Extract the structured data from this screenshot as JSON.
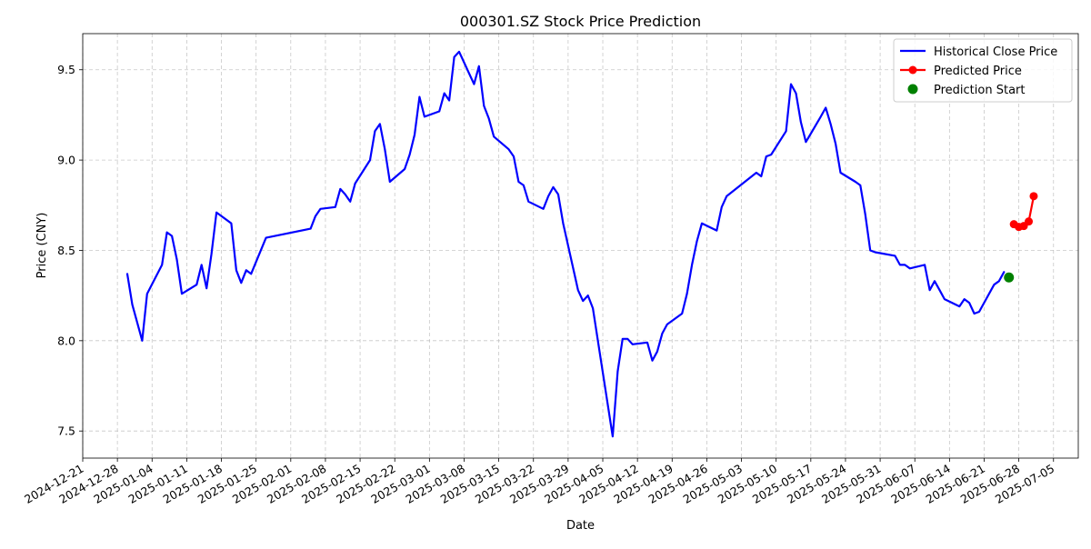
{
  "chart_data": {
    "type": "line",
    "title": "000301.SZ Stock Price Prediction",
    "xlabel": "Date",
    "ylabel": "Price (CNY)",
    "xlim": [
      "2024-12-21",
      "2025-07-10"
    ],
    "ylim": [
      7.35,
      9.7
    ],
    "y_ticks": [
      7.5,
      8.0,
      8.5,
      9.0,
      9.5
    ],
    "x_ticks": [
      "2024-12-21",
      "2024-12-28",
      "2025-01-04",
      "2025-01-11",
      "2025-01-18",
      "2025-01-25",
      "2025-02-01",
      "2025-02-08",
      "2025-02-15",
      "2025-02-22",
      "2025-03-01",
      "2025-03-08",
      "2025-03-15",
      "2025-03-22",
      "2025-03-29",
      "2025-04-05",
      "2025-04-12",
      "2025-04-19",
      "2025-04-26",
      "2025-05-03",
      "2025-05-10",
      "2025-05-17",
      "2025-05-24",
      "2025-05-31",
      "2025-06-07",
      "2025-06-14",
      "2025-06-21",
      "2025-06-28",
      "2025-07-05"
    ],
    "grid": true,
    "legend_position": "top-right",
    "series": [
      {
        "name": "Historical Close Price",
        "color": "#0000ff",
        "style": "line",
        "points": [
          [
            "2024-12-30",
            8.37
          ],
          [
            "2024-12-31",
            8.2
          ],
          [
            "2025-01-02",
            8.0
          ],
          [
            "2025-01-03",
            8.26
          ],
          [
            "2025-01-06",
            8.42
          ],
          [
            "2025-01-07",
            8.6
          ],
          [
            "2025-01-08",
            8.58
          ],
          [
            "2025-01-09",
            8.45
          ],
          [
            "2025-01-10",
            8.26
          ],
          [
            "2025-01-13",
            8.31
          ],
          [
            "2025-01-14",
            8.42
          ],
          [
            "2025-01-15",
            8.29
          ],
          [
            "2025-01-16",
            8.48
          ],
          [
            "2025-01-17",
            8.71
          ],
          [
            "2025-01-20",
            8.65
          ],
          [
            "2025-01-21",
            8.39
          ],
          [
            "2025-01-22",
            8.32
          ],
          [
            "2025-01-23",
            8.39
          ],
          [
            "2025-01-24",
            8.37
          ],
          [
            "2025-01-27",
            8.57
          ],
          [
            "2025-02-05",
            8.62
          ],
          [
            "2025-02-06",
            8.69
          ],
          [
            "2025-02-07",
            8.73
          ],
          [
            "2025-02-10",
            8.74
          ],
          [
            "2025-02-11",
            8.84
          ],
          [
            "2025-02-12",
            8.81
          ],
          [
            "2025-02-13",
            8.77
          ],
          [
            "2025-02-14",
            8.87
          ],
          [
            "2025-02-17",
            9.0
          ],
          [
            "2025-02-18",
            9.16
          ],
          [
            "2025-02-19",
            9.2
          ],
          [
            "2025-02-20",
            9.06
          ],
          [
            "2025-02-21",
            8.88
          ],
          [
            "2025-02-24",
            8.95
          ],
          [
            "2025-02-25",
            9.03
          ],
          [
            "2025-02-26",
            9.14
          ],
          [
            "2025-02-27",
            9.35
          ],
          [
            "2025-02-28",
            9.24
          ],
          [
            "2025-03-03",
            9.27
          ],
          [
            "2025-03-04",
            9.37
          ],
          [
            "2025-03-05",
            9.33
          ],
          [
            "2025-03-06",
            9.57
          ],
          [
            "2025-03-07",
            9.6
          ],
          [
            "2025-03-10",
            9.42
          ],
          [
            "2025-03-11",
            9.52
          ],
          [
            "2025-03-12",
            9.3
          ],
          [
            "2025-03-13",
            9.23
          ],
          [
            "2025-03-14",
            9.13
          ],
          [
            "2025-03-17",
            9.06
          ],
          [
            "2025-03-18",
            9.02
          ],
          [
            "2025-03-19",
            8.88
          ],
          [
            "2025-03-20",
            8.86
          ],
          [
            "2025-03-21",
            8.77
          ],
          [
            "2025-03-24",
            8.73
          ],
          [
            "2025-03-25",
            8.8
          ],
          [
            "2025-03-26",
            8.85
          ],
          [
            "2025-03-27",
            8.81
          ],
          [
            "2025-03-28",
            8.65
          ],
          [
            "2025-03-31",
            8.28
          ],
          [
            "2025-04-01",
            8.22
          ],
          [
            "2025-04-02",
            8.25
          ],
          [
            "2025-04-03",
            8.18
          ],
          [
            "2025-04-07",
            7.47
          ],
          [
            "2025-04-08",
            7.83
          ],
          [
            "2025-04-09",
            8.01
          ],
          [
            "2025-04-10",
            8.01
          ],
          [
            "2025-04-11",
            7.98
          ],
          [
            "2025-04-14",
            7.99
          ],
          [
            "2025-04-15",
            7.89
          ],
          [
            "2025-04-16",
            7.94
          ],
          [
            "2025-04-17",
            8.04
          ],
          [
            "2025-04-18",
            8.09
          ],
          [
            "2025-04-21",
            8.15
          ],
          [
            "2025-04-22",
            8.26
          ],
          [
            "2025-04-23",
            8.42
          ],
          [
            "2025-04-24",
            8.55
          ],
          [
            "2025-04-25",
            8.65
          ],
          [
            "2025-04-28",
            8.61
          ],
          [
            "2025-04-29",
            8.74
          ],
          [
            "2025-04-30",
            8.8
          ],
          [
            "2025-05-06",
            8.93
          ],
          [
            "2025-05-07",
            8.91
          ],
          [
            "2025-05-08",
            9.02
          ],
          [
            "2025-05-09",
            9.03
          ],
          [
            "2025-05-12",
            9.16
          ],
          [
            "2025-05-13",
            9.42
          ],
          [
            "2025-05-14",
            9.37
          ],
          [
            "2025-05-15",
            9.21
          ],
          [
            "2025-05-16",
            9.1
          ],
          [
            "2025-05-19",
            9.24
          ],
          [
            "2025-05-20",
            9.29
          ],
          [
            "2025-05-21",
            9.2
          ],
          [
            "2025-05-22",
            9.09
          ],
          [
            "2025-05-23",
            8.93
          ],
          [
            "2025-05-26",
            8.88
          ],
          [
            "2025-05-27",
            8.86
          ],
          [
            "2025-05-28",
            8.7
          ],
          [
            "2025-05-29",
            8.5
          ],
          [
            "2025-05-30",
            8.49
          ],
          [
            "2025-06-03",
            8.47
          ],
          [
            "2025-06-04",
            8.42
          ],
          [
            "2025-06-05",
            8.42
          ],
          [
            "2025-06-06",
            8.4
          ],
          [
            "2025-06-09",
            8.42
          ],
          [
            "2025-06-10",
            8.28
          ],
          [
            "2025-06-11",
            8.33
          ],
          [
            "2025-06-12",
            8.28
          ],
          [
            "2025-06-13",
            8.23
          ],
          [
            "2025-06-16",
            8.19
          ],
          [
            "2025-06-17",
            8.23
          ],
          [
            "2025-06-18",
            8.21
          ],
          [
            "2025-06-19",
            8.15
          ],
          [
            "2025-06-20",
            8.16
          ],
          [
            "2025-06-23",
            8.31
          ],
          [
            "2025-06-24",
            8.33
          ],
          [
            "2025-06-25",
            8.38
          ]
        ]
      },
      {
        "name": "Predicted Price",
        "color": "#ff0000",
        "style": "line-markers",
        "points": [
          [
            "2025-06-27",
            8.645
          ],
          [
            "2025-06-28",
            8.63
          ],
          [
            "2025-06-29",
            8.635
          ],
          [
            "2025-06-30",
            8.66
          ],
          [
            "2025-07-01",
            8.8
          ]
        ]
      },
      {
        "name": "Prediction Start",
        "color": "#008000",
        "style": "marker",
        "points": [
          [
            "2025-06-26",
            8.35
          ]
        ]
      }
    ]
  }
}
